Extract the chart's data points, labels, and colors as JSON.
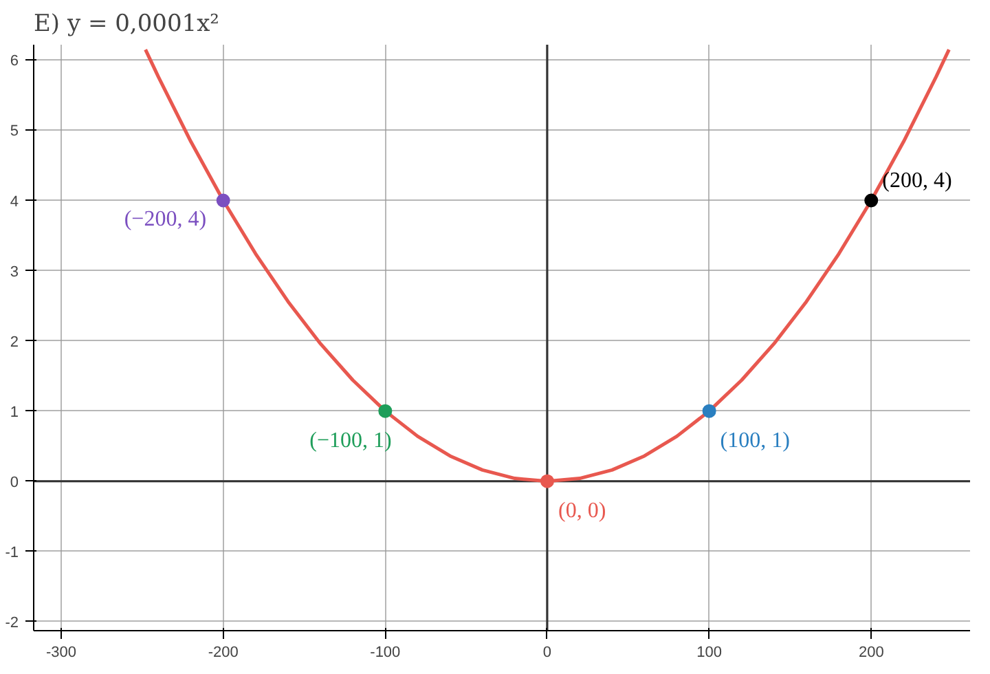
{
  "chart_data": {
    "type": "line",
    "title": "Е) y = 0,0001x²",
    "xlim": [
      -317,
      261
    ],
    "ylim": [
      -2.13,
      6.22
    ],
    "xticks": [
      -300,
      -200,
      -100,
      0,
      100,
      200
    ],
    "yticks": [
      -2,
      -1,
      0,
      1,
      2,
      3,
      4,
      5,
      6
    ],
    "grid": true,
    "series": [
      {
        "color": "#e8584f",
        "x": [
          -248,
          -240,
          -220,
          -200,
          -180,
          -160,
          -140,
          -120,
          -100,
          -80,
          -60,
          -40,
          -20,
          0,
          20,
          40,
          60,
          80,
          100,
          120,
          140,
          160,
          180,
          200,
          220,
          240,
          248
        ],
        "values": [
          6.15,
          5.76,
          4.84,
          4,
          3.24,
          2.56,
          1.96,
          1.44,
          1,
          0.64,
          0.36,
          0.16,
          0.04,
          0,
          0.04,
          0.16,
          0.36,
          0.64,
          1,
          1.44,
          1.96,
          2.56,
          3.24,
          4,
          4.84,
          5.76,
          6.15
        ]
      },
      {
        "type": "scatter",
        "marker": "circle",
        "x": [
          -200,
          -100,
          0,
          100,
          200
        ],
        "values": [
          4,
          1,
          0,
          1,
          4
        ],
        "colors": [
          "#7b4fc0",
          "#1f9e5a",
          "#e8584f",
          "#2a7fc0",
          "#000000"
        ],
        "value_labels": [
          "(−200, 4)",
          "(−100, 1)",
          "(0, 0)",
          "(100, 1)",
          "(200, 4)"
        ]
      }
    ]
  }
}
